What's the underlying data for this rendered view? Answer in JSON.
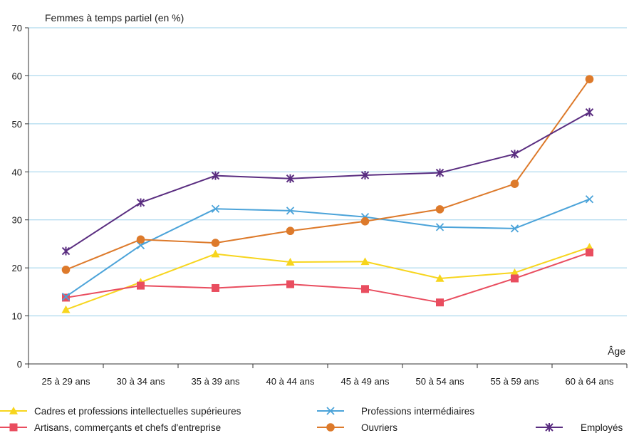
{
  "chart_data": {
    "type": "line",
    "ylabel": "Femmes à temps partiel (en %)",
    "xlabel": "Âge",
    "ylim": [
      0,
      70
    ],
    "yticks": [
      0,
      10,
      20,
      30,
      40,
      50,
      60,
      70
    ],
    "grid": "horizontal",
    "legend_position": "bottom",
    "categories": [
      "25 à 29 ans",
      "30 à 34 ans",
      "35 à 39 ans",
      "40 à 44 ans",
      "45 à 49 ans",
      "50 à 54 ans",
      "55 à 59 ans",
      "60 à 64 ans"
    ],
    "series": [
      {
        "name": "Cadres et professions intellectuelles supérieures",
        "color": "#f7d51d",
        "marker": "triangle",
        "values": [
          11.3,
          17.0,
          22.9,
          21.2,
          21.3,
          17.8,
          19.0,
          24.3
        ]
      },
      {
        "name": "Artisans, commerçants et chefs d'entreprise",
        "color": "#e94d5f",
        "marker": "square",
        "values": [
          13.8,
          16.3,
          15.8,
          16.6,
          15.6,
          12.8,
          17.8,
          23.2
        ]
      },
      {
        "name": "Professions intermédiaires",
        "color": "#4ba3d9",
        "marker": "x",
        "values": [
          14.0,
          24.7,
          32.3,
          31.9,
          30.6,
          28.5,
          28.2,
          34.3
        ]
      },
      {
        "name": "Ouvriers",
        "color": "#dd7a2b",
        "marker": "circle",
        "values": [
          19.6,
          25.9,
          25.2,
          27.7,
          29.7,
          32.2,
          37.5,
          59.3
        ]
      },
      {
        "name": "Employés",
        "color": "#5a2d80",
        "marker": "star",
        "values": [
          23.5,
          33.6,
          39.2,
          38.6,
          39.3,
          39.8,
          43.7,
          52.4
        ]
      }
    ]
  },
  "colors": {
    "grid": "#9bd0ea",
    "axis": "#333333"
  }
}
